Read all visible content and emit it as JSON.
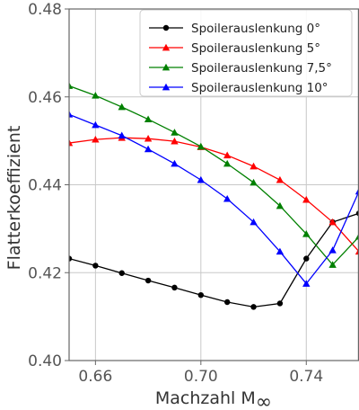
{
  "chart_data": {
    "type": "line",
    "title": "",
    "xlabel": "Machzahl M",
    "xlabel_subscript": "∞",
    "ylabel": "Flatterkoeffizient",
    "xlim": [
      0.65,
      0.76
    ],
    "ylim": [
      0.4,
      0.48
    ],
    "xticks": [
      0.66,
      0.7,
      0.74
    ],
    "xtick_labels": [
      "0.66",
      "0.70",
      "0.74"
    ],
    "yticks": [
      0.4,
      0.42,
      0.44,
      0.46,
      0.48
    ],
    "ytick_labels": [
      "0.40",
      "0.42",
      "0.44",
      "0.46",
      "0.48"
    ],
    "grid": true,
    "legend_position": "top-right",
    "series": [
      {
        "name": "Spoilerauslenkung 0°",
        "color": "#000000",
        "marker": "circle",
        "x": [
          0.65,
          0.66,
          0.67,
          0.68,
          0.69,
          0.7,
          0.71,
          0.72,
          0.73,
          0.74,
          0.75,
          0.76
        ],
        "y": [
          0.4232,
          0.4216,
          0.4199,
          0.4182,
          0.4166,
          0.4149,
          0.4133,
          0.4122,
          0.413,
          0.4232,
          0.4315,
          0.4335
        ]
      },
      {
        "name": "Spoilerauslenkung 5°",
        "color": "#ff0000",
        "marker": "triangle",
        "x": [
          0.65,
          0.66,
          0.67,
          0.68,
          0.69,
          0.7,
          0.71,
          0.72,
          0.73,
          0.74,
          0.75,
          0.76
        ],
        "y": [
          0.4495,
          0.4503,
          0.4507,
          0.4505,
          0.4499,
          0.4486,
          0.4467,
          0.4442,
          0.4411,
          0.4366,
          0.4315,
          0.4248
        ]
      },
      {
        "name": "Spoilerauslenkung 7,5°",
        "color": "#008000",
        "marker": "triangle",
        "x": [
          0.65,
          0.66,
          0.67,
          0.68,
          0.69,
          0.7,
          0.71,
          0.72,
          0.73,
          0.74,
          0.75,
          0.76
        ],
        "y": [
          0.4625,
          0.4603,
          0.4577,
          0.4549,
          0.4519,
          0.4487,
          0.4448,
          0.4405,
          0.4352,
          0.4288,
          0.4218,
          0.4282
        ]
      },
      {
        "name": "Spoilerauslenkung 10°",
        "color": "#0000ff",
        "marker": "triangle",
        "x": [
          0.65,
          0.66,
          0.67,
          0.68,
          0.69,
          0.7,
          0.71,
          0.72,
          0.73,
          0.74,
          0.75,
          0.76
        ],
        "y": [
          0.456,
          0.4536,
          0.4512,
          0.4481,
          0.4448,
          0.4411,
          0.4368,
          0.4315,
          0.4248,
          0.4175,
          0.4251,
          0.4385
        ]
      }
    ]
  }
}
